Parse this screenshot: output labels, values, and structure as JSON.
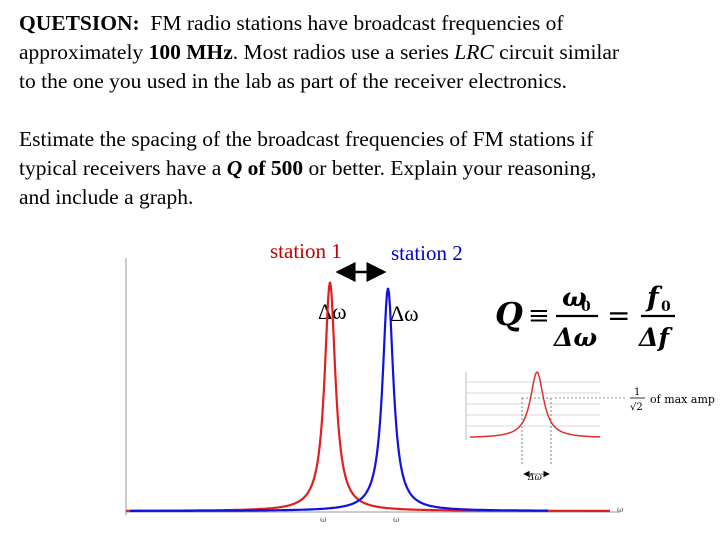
{
  "question": {
    "heading": "QUETSION:",
    "line1_a": "FM radio stations have broadcast frequencies of",
    "line2_a": "approximately ",
    "line2_b": "100 MHz",
    "line2_c": ".  Most radios use a series ",
    "line2_d": "LRC",
    "line2_e": " circuit similar",
    "line3": "to the one you used in the lab as part of the receiver electronics."
  },
  "task": {
    "line1": "Estimate the spacing of the broadcast frequencies of FM stations if",
    "line2_a": "typical receivers have a ",
    "line2_b": "Q",
    "line2_c": " of 500",
    "line2_d": " or better.  Explain your reasoning,",
    "line3": "and include a graph."
  },
  "graph": {
    "station1_label": "station 1",
    "station2_label": "station 2",
    "width_label_1": "Δω",
    "width_label_2": "Δω",
    "axis_tick_1": "ω",
    "axis_tick_2": "ω",
    "colors": {
      "station1": "#e02020",
      "station2": "#1010e0",
      "arrow": "#000000"
    }
  },
  "formula": {
    "Q": "Q",
    "equiv": "≡",
    "omega0": "ω",
    "omega0_sub": "0",
    "delta_omega": "Δω",
    "eq": "=",
    "f0": "f",
    "f0_sub": "0",
    "delta_f": "Δf"
  },
  "inset": {
    "fraction_num": "1",
    "fraction_den": "√2",
    "label": "of max amp",
    "delta_label": "Δω",
    "axis_tick": "ω"
  }
}
